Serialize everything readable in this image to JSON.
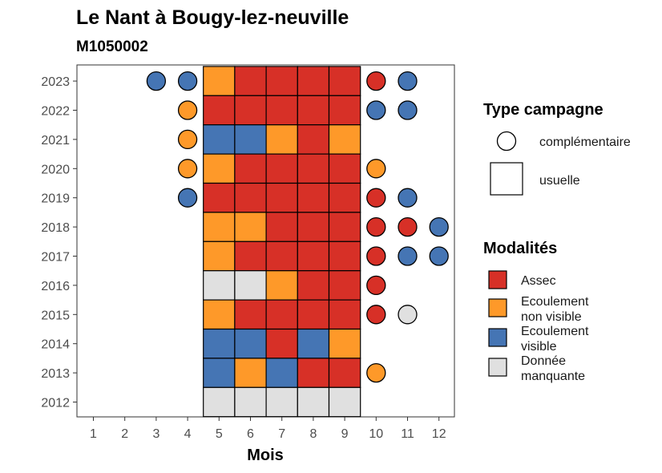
{
  "chart_data": {
    "type": "heatmap",
    "title": "Le Nant à Bougy-lez-neuville",
    "subtitle": "M1050002",
    "xlabel": "Mois",
    "ylabel": "",
    "x_ticks": [
      "1",
      "2",
      "3",
      "4",
      "5",
      "6",
      "7",
      "8",
      "9",
      "10",
      "11",
      "12"
    ],
    "y_ticks": [
      "2012",
      "2013",
      "2014",
      "2015",
      "2016",
      "2017",
      "2018",
      "2019",
      "2020",
      "2021",
      "2022",
      "2023"
    ],
    "colors": {
      "Assec": "#d73027",
      "Ecoulement non visible": "#fe9929",
      "Ecoulement visible": "#4575b4",
      "Donnée manquante": "#e0e0e0"
    },
    "usuelle": [
      {
        "year": 2023,
        "months": [
          "Ecoulement non visible",
          "Assec",
          "Assec",
          "Assec",
          "Assec"
        ]
      },
      {
        "year": 2022,
        "months": [
          "Assec",
          "Assec",
          "Assec",
          "Assec",
          "Assec"
        ]
      },
      {
        "year": 2021,
        "months": [
          "Ecoulement visible",
          "Ecoulement visible",
          "Ecoulement non visible",
          "Assec",
          "Ecoulement non visible"
        ]
      },
      {
        "year": 2020,
        "months": [
          "Ecoulement non visible",
          "Assec",
          "Assec",
          "Assec",
          "Assec"
        ]
      },
      {
        "year": 2019,
        "months": [
          "Assec",
          "Assec",
          "Assec",
          "Assec",
          "Assec"
        ]
      },
      {
        "year": 2018,
        "months": [
          "Ecoulement non visible",
          "Ecoulement non visible",
          "Assec",
          "Assec",
          "Assec"
        ]
      },
      {
        "year": 2017,
        "months": [
          "Ecoulement non visible",
          "Assec",
          "Assec",
          "Assec",
          "Assec"
        ]
      },
      {
        "year": 2016,
        "months": [
          "Donnée manquante",
          "Donnée manquante",
          "Ecoulement non visible",
          "Assec",
          "Assec"
        ]
      },
      {
        "year": 2015,
        "months": [
          "Ecoulement non visible",
          "Assec",
          "Assec",
          "Assec",
          "Assec"
        ]
      },
      {
        "year": 2014,
        "months": [
          "Ecoulement visible",
          "Ecoulement visible",
          "Assec",
          "Ecoulement visible",
          "Ecoulement non visible"
        ]
      },
      {
        "year": 2013,
        "months": [
          "Ecoulement visible",
          "Ecoulement non visible",
          "Ecoulement visible",
          "Assec",
          "Assec"
        ]
      },
      {
        "year": 2012,
        "months": [
          "Donnée manquante",
          "Donnée manquante",
          "Donnée manquante",
          "Donnée manquante",
          "Donnée manquante"
        ]
      }
    ],
    "usuelle_month_start": 5,
    "complementaire": [
      {
        "year": 2023,
        "month": 3,
        "modalite": "Ecoulement visible"
      },
      {
        "year": 2023,
        "month": 4,
        "modalite": "Ecoulement visible"
      },
      {
        "year": 2023,
        "month": 10,
        "modalite": "Assec"
      },
      {
        "year": 2023,
        "month": 11,
        "modalite": "Ecoulement visible"
      },
      {
        "year": 2022,
        "month": 4,
        "modalite": "Ecoulement non visible"
      },
      {
        "year": 2022,
        "month": 10,
        "modalite": "Ecoulement visible"
      },
      {
        "year": 2022,
        "month": 11,
        "modalite": "Ecoulement visible"
      },
      {
        "year": 2021,
        "month": 4,
        "modalite": "Ecoulement non visible"
      },
      {
        "year": 2020,
        "month": 4,
        "modalite": "Ecoulement non visible"
      },
      {
        "year": 2020,
        "month": 10,
        "modalite": "Ecoulement non visible"
      },
      {
        "year": 2019,
        "month": 4,
        "modalite": "Ecoulement visible"
      },
      {
        "year": 2019,
        "month": 10,
        "modalite": "Assec"
      },
      {
        "year": 2019,
        "month": 11,
        "modalite": "Ecoulement visible"
      },
      {
        "year": 2018,
        "month": 10,
        "modalite": "Assec"
      },
      {
        "year": 2018,
        "month": 11,
        "modalite": "Assec"
      },
      {
        "year": 2018,
        "month": 12,
        "modalite": "Ecoulement visible"
      },
      {
        "year": 2017,
        "month": 10,
        "modalite": "Assec"
      },
      {
        "year": 2017,
        "month": 11,
        "modalite": "Ecoulement visible"
      },
      {
        "year": 2017,
        "month": 12,
        "modalite": "Ecoulement visible"
      },
      {
        "year": 2016,
        "month": 10,
        "modalite": "Assec"
      },
      {
        "year": 2015,
        "month": 10,
        "modalite": "Assec"
      },
      {
        "year": 2015,
        "month": 11,
        "modalite": "Donnée manquante"
      },
      {
        "year": 2013,
        "month": 10,
        "modalite": "Ecoulement non visible"
      }
    ],
    "legend": {
      "campagne_title": "Type campagne",
      "campagne_items": [
        "complémentaire",
        "usuelle"
      ],
      "modalites_title": "Modalités",
      "modalites_items": [
        {
          "key": "Assec",
          "lines": [
            "Assec"
          ]
        },
        {
          "key": "Ecoulement non visible",
          "lines": [
            "Ecoulement",
            "non visible"
          ]
        },
        {
          "key": "Ecoulement visible",
          "lines": [
            "Ecoulement",
            "visible"
          ]
        },
        {
          "key": "Donnée manquante",
          "lines": [
            "Donnée",
            "manquante"
          ]
        }
      ]
    }
  }
}
